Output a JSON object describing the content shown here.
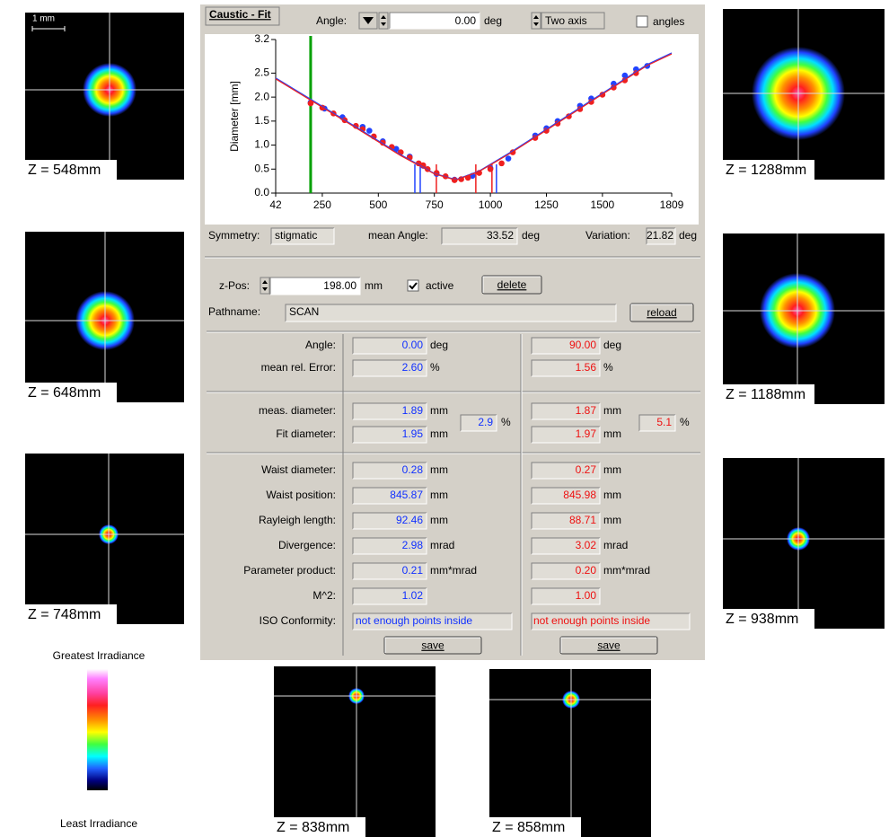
{
  "images": [
    {
      "label": "Z = 548mm"
    },
    {
      "label": "Z = 648mm"
    },
    {
      "label": "Z = 748mm"
    },
    {
      "label": "Z = 1288mm"
    },
    {
      "label": "Z = 1188mm"
    },
    {
      "label": "Z = 938mm"
    },
    {
      "label": "Z = 838mm"
    },
    {
      "label": "Z = 858mm"
    }
  ],
  "scale_bar": "1 mm",
  "colorbar": {
    "top": "Greatest Irradiance",
    "bottom": "Least Irradiance"
  },
  "panel": {
    "tab": "Caustic - Fit",
    "angle_label": "Angle:",
    "angle_value": "0.00",
    "angle_unit": "deg",
    "mode": "Two axis",
    "angles_checkbox": "angles",
    "symmetry_label": "Symmetry:",
    "symmetry": "stigmatic",
    "mean_angle_label": "mean Angle:",
    "mean_angle": "33.52",
    "mean_angle_unit": "deg",
    "variation_label": "Variation:",
    "variation": "21.82",
    "variation_unit": "deg",
    "zpos_label": "z-Pos:",
    "zpos": "198.00",
    "zpos_unit": "mm",
    "active": "active",
    "delete": "delete",
    "pathname_label": "Pathname:",
    "pathname": "SCAN",
    "reload": "reload",
    "sections": [
      [
        {
          "label": "Angle:",
          "x": "0.00",
          "y": "90.00",
          "unit": "deg"
        },
        {
          "label": "mean rel. Error:",
          "x": "2.60",
          "y": "1.56",
          "unit": "%"
        }
      ],
      [
        {
          "label": "meas. diameter:",
          "x": "1.89",
          "y": "1.87",
          "unit": "mm"
        },
        {
          "label": "Fit diameter:",
          "x": "1.95",
          "y": "1.97",
          "unit": "mm"
        }
      ],
      [
        {
          "label": "Waist diameter:",
          "x": "0.28",
          "y": "0.27",
          "unit": "mm"
        },
        {
          "label": "Waist position:",
          "x": "845.87",
          "y": "845.98",
          "unit": "mm"
        },
        {
          "label": "Rayleigh length:",
          "x": "92.46",
          "y": "88.71",
          "unit": "mm"
        },
        {
          "label": "Divergence:",
          "x": "2.98",
          "y": "3.02",
          "unit": "mrad"
        },
        {
          "label": "Parameter product:",
          "x": "0.21",
          "y": "0.20",
          "unit": "mm*mrad"
        },
        {
          "label": "M^2:",
          "x": "1.02",
          "y": "1.00"
        }
      ]
    ],
    "ratio": {
      "x": "2.9",
      "y": "5.1",
      "unit": "%"
    },
    "iso": {
      "label": "ISO Conformity:",
      "x": "not enough points inside",
      "y": "not enough points inside"
    },
    "save": "save"
  },
  "chart_data": {
    "type": "scatter",
    "ylabel": "Diameter [mm]",
    "xlim": [
      42,
      1809
    ],
    "xticks": [
      42,
      250,
      500,
      750,
      1000,
      1250,
      1500,
      1809
    ],
    "ylim": [
      0,
      3.2
    ],
    "yticks": [
      {
        "value": 0,
        "label": "0.0"
      },
      0.5,
      {
        "value": 1,
        "label": "1.0"
      },
      1.5,
      {
        "value": 2,
        "label": "2.0"
      },
      2.5,
      3.2
    ],
    "series": [
      {
        "color": "#2244ff",
        "x": [
          198,
          260,
          340,
          430,
          460,
          520,
          580,
          640,
          700,
          760,
          840,
          920,
          1000,
          1080,
          1200,
          1250,
          1300,
          1400,
          1450,
          1550,
          1600,
          1650,
          1700
        ],
        "values": [
          1.89,
          1.76,
          1.58,
          1.38,
          1.3,
          1.08,
          0.92,
          0.76,
          0.57,
          0.4,
          0.28,
          0.36,
          0.52,
          0.72,
          1.2,
          1.35,
          1.5,
          1.82,
          1.97,
          2.28,
          2.45,
          2.58,
          2.65
        ]
      },
      {
        "color": "#ee2020",
        "x": [
          198,
          250,
          300,
          350,
          400,
          430,
          480,
          520,
          560,
          600,
          640,
          680,
          700,
          720,
          760,
          800,
          840,
          870,
          900,
          950,
          1000,
          1050,
          1100,
          1200,
          1250,
          1300,
          1350,
          1400,
          1450,
          1500,
          1550,
          1600,
          1650
        ],
        "values": [
          1.87,
          1.78,
          1.66,
          1.52,
          1.4,
          1.33,
          1.18,
          1.05,
          0.96,
          0.85,
          0.74,
          0.62,
          0.58,
          0.5,
          0.42,
          0.35,
          0.27,
          0.29,
          0.32,
          0.42,
          0.5,
          0.62,
          0.85,
          1.15,
          1.3,
          1.45,
          1.6,
          1.75,
          1.9,
          2.05,
          2.2,
          2.35,
          2.5
        ]
      }
    ],
    "fits": [
      {
        "color": "#2244ff",
        "x": [
          42,
          200,
          400,
          600,
          750,
          846,
          950,
          1100,
          1300,
          1500,
          1700,
          1809
        ],
        "values": [
          2.4,
          1.95,
          1.38,
          0.8,
          0.41,
          0.28,
          0.46,
          0.88,
          1.48,
          2.08,
          2.68,
          2.92
        ]
      },
      {
        "color": "#ee2020",
        "x": [
          42,
          200,
          400,
          600,
          750,
          846,
          950,
          1100,
          1300,
          1500,
          1700,
          1809
        ],
        "values": [
          2.38,
          1.93,
          1.36,
          0.78,
          0.4,
          0.27,
          0.45,
          0.86,
          1.46,
          2.06,
          2.66,
          2.9
        ]
      }
    ],
    "range_markers": [
      {
        "color": "#2244ff",
        "x": [
          663,
          687,
          1027
        ]
      },
      {
        "color": "#ee2020",
        "x": [
          759,
          935,
          1007
        ]
      }
    ],
    "cursor_z": 198,
    "cursor_color": "#00a000"
  }
}
